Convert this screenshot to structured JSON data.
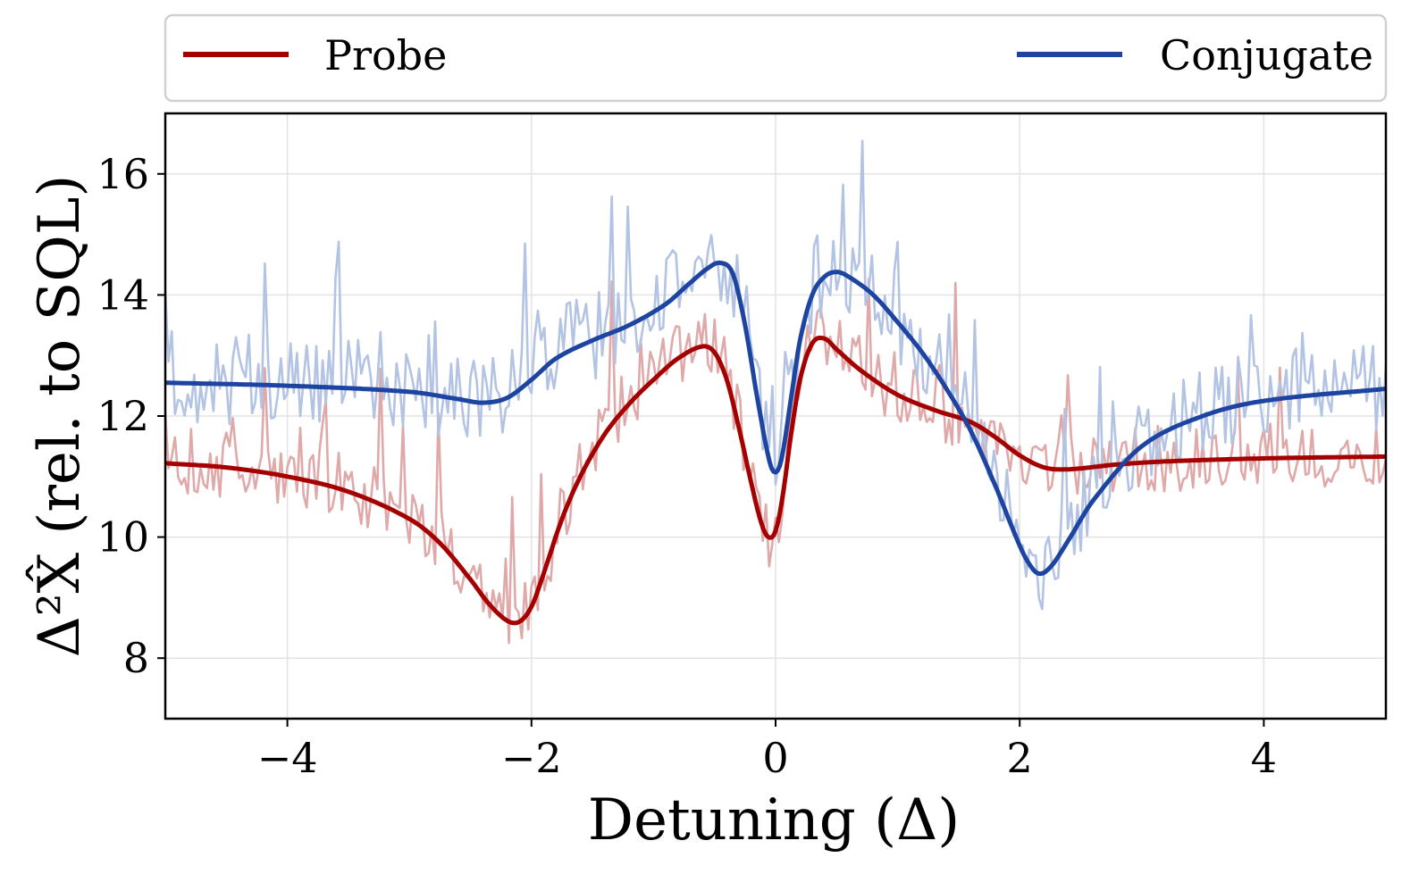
{
  "chart_data": {
    "type": "line",
    "xlabel": "Detuning (Δ)",
    "ylabel": "Δ²X̂ (rel. to SQL)",
    "xlim": [
      -5,
      5
    ],
    "ylim": [
      7,
      17
    ],
    "xticks": [
      -4,
      -2,
      0,
      2,
      4
    ],
    "xtick_labels": [
      "−4",
      "−2",
      "0",
      "2",
      "4"
    ],
    "yticks": [
      8,
      10,
      12,
      14,
      16
    ],
    "ytick_labels": [
      "8",
      "10",
      "12",
      "14",
      "16"
    ],
    "grid": true,
    "legend": {
      "position": "top, above plot",
      "entries": [
        "Probe",
        "Conjugate"
      ]
    },
    "series": [
      {
        "name": "Probe",
        "color": "#a50000",
        "x": [
          -5.0,
          -4.5,
          -4.0,
          -3.5,
          -3.0,
          -2.75,
          -2.5,
          -2.35,
          -2.2,
          -2.1,
          -2.0,
          -1.9,
          -1.75,
          -1.6,
          -1.4,
          -1.2,
          -1.0,
          -0.8,
          -0.6,
          -0.5,
          -0.4,
          -0.3,
          -0.2,
          -0.12,
          -0.06,
          0.0,
          0.06,
          0.12,
          0.2,
          0.3,
          0.4,
          0.5,
          0.7,
          1.0,
          1.3,
          1.6,
          1.8,
          2.0,
          2.2,
          2.4,
          2.8,
          3.2,
          4.0,
          5.0
        ],
        "values": [
          11.22,
          11.15,
          11.0,
          10.75,
          10.3,
          9.9,
          9.3,
          8.9,
          8.62,
          8.6,
          8.85,
          9.4,
          10.3,
          11.0,
          11.7,
          12.2,
          12.6,
          12.95,
          13.15,
          13.05,
          12.6,
          11.8,
          10.9,
          10.25,
          10.0,
          10.1,
          10.7,
          11.6,
          12.6,
          13.2,
          13.28,
          13.1,
          12.75,
          12.35,
          12.1,
          11.9,
          11.65,
          11.35,
          11.15,
          11.12,
          11.2,
          11.25,
          11.3,
          11.33
        ]
      },
      {
        "name": "Conjugate",
        "color": "#1c44a0",
        "x": [
          -5.0,
          -4.0,
          -3.0,
          -2.6,
          -2.4,
          -2.2,
          -2.0,
          -1.8,
          -1.5,
          -1.2,
          -0.9,
          -0.7,
          -0.55,
          -0.45,
          -0.35,
          -0.25,
          -0.15,
          -0.05,
          0.0,
          0.05,
          0.12,
          0.2,
          0.3,
          0.4,
          0.5,
          0.6,
          0.8,
          1.0,
          1.2,
          1.4,
          1.6,
          1.8,
          1.95,
          2.05,
          2.15,
          2.25,
          2.4,
          2.6,
          3.0,
          3.5,
          4.0,
          5.0
        ],
        "values": [
          12.55,
          12.5,
          12.4,
          12.28,
          12.22,
          12.3,
          12.6,
          12.95,
          13.25,
          13.5,
          13.85,
          14.2,
          14.45,
          14.53,
          14.35,
          13.5,
          12.3,
          11.25,
          11.07,
          11.3,
          12.2,
          13.25,
          14.0,
          14.3,
          14.38,
          14.3,
          14.0,
          13.55,
          13.05,
          12.45,
          11.75,
          10.85,
          10.1,
          9.65,
          9.4,
          9.5,
          9.95,
          10.6,
          11.5,
          12.0,
          12.25,
          12.45
        ]
      }
    ]
  }
}
